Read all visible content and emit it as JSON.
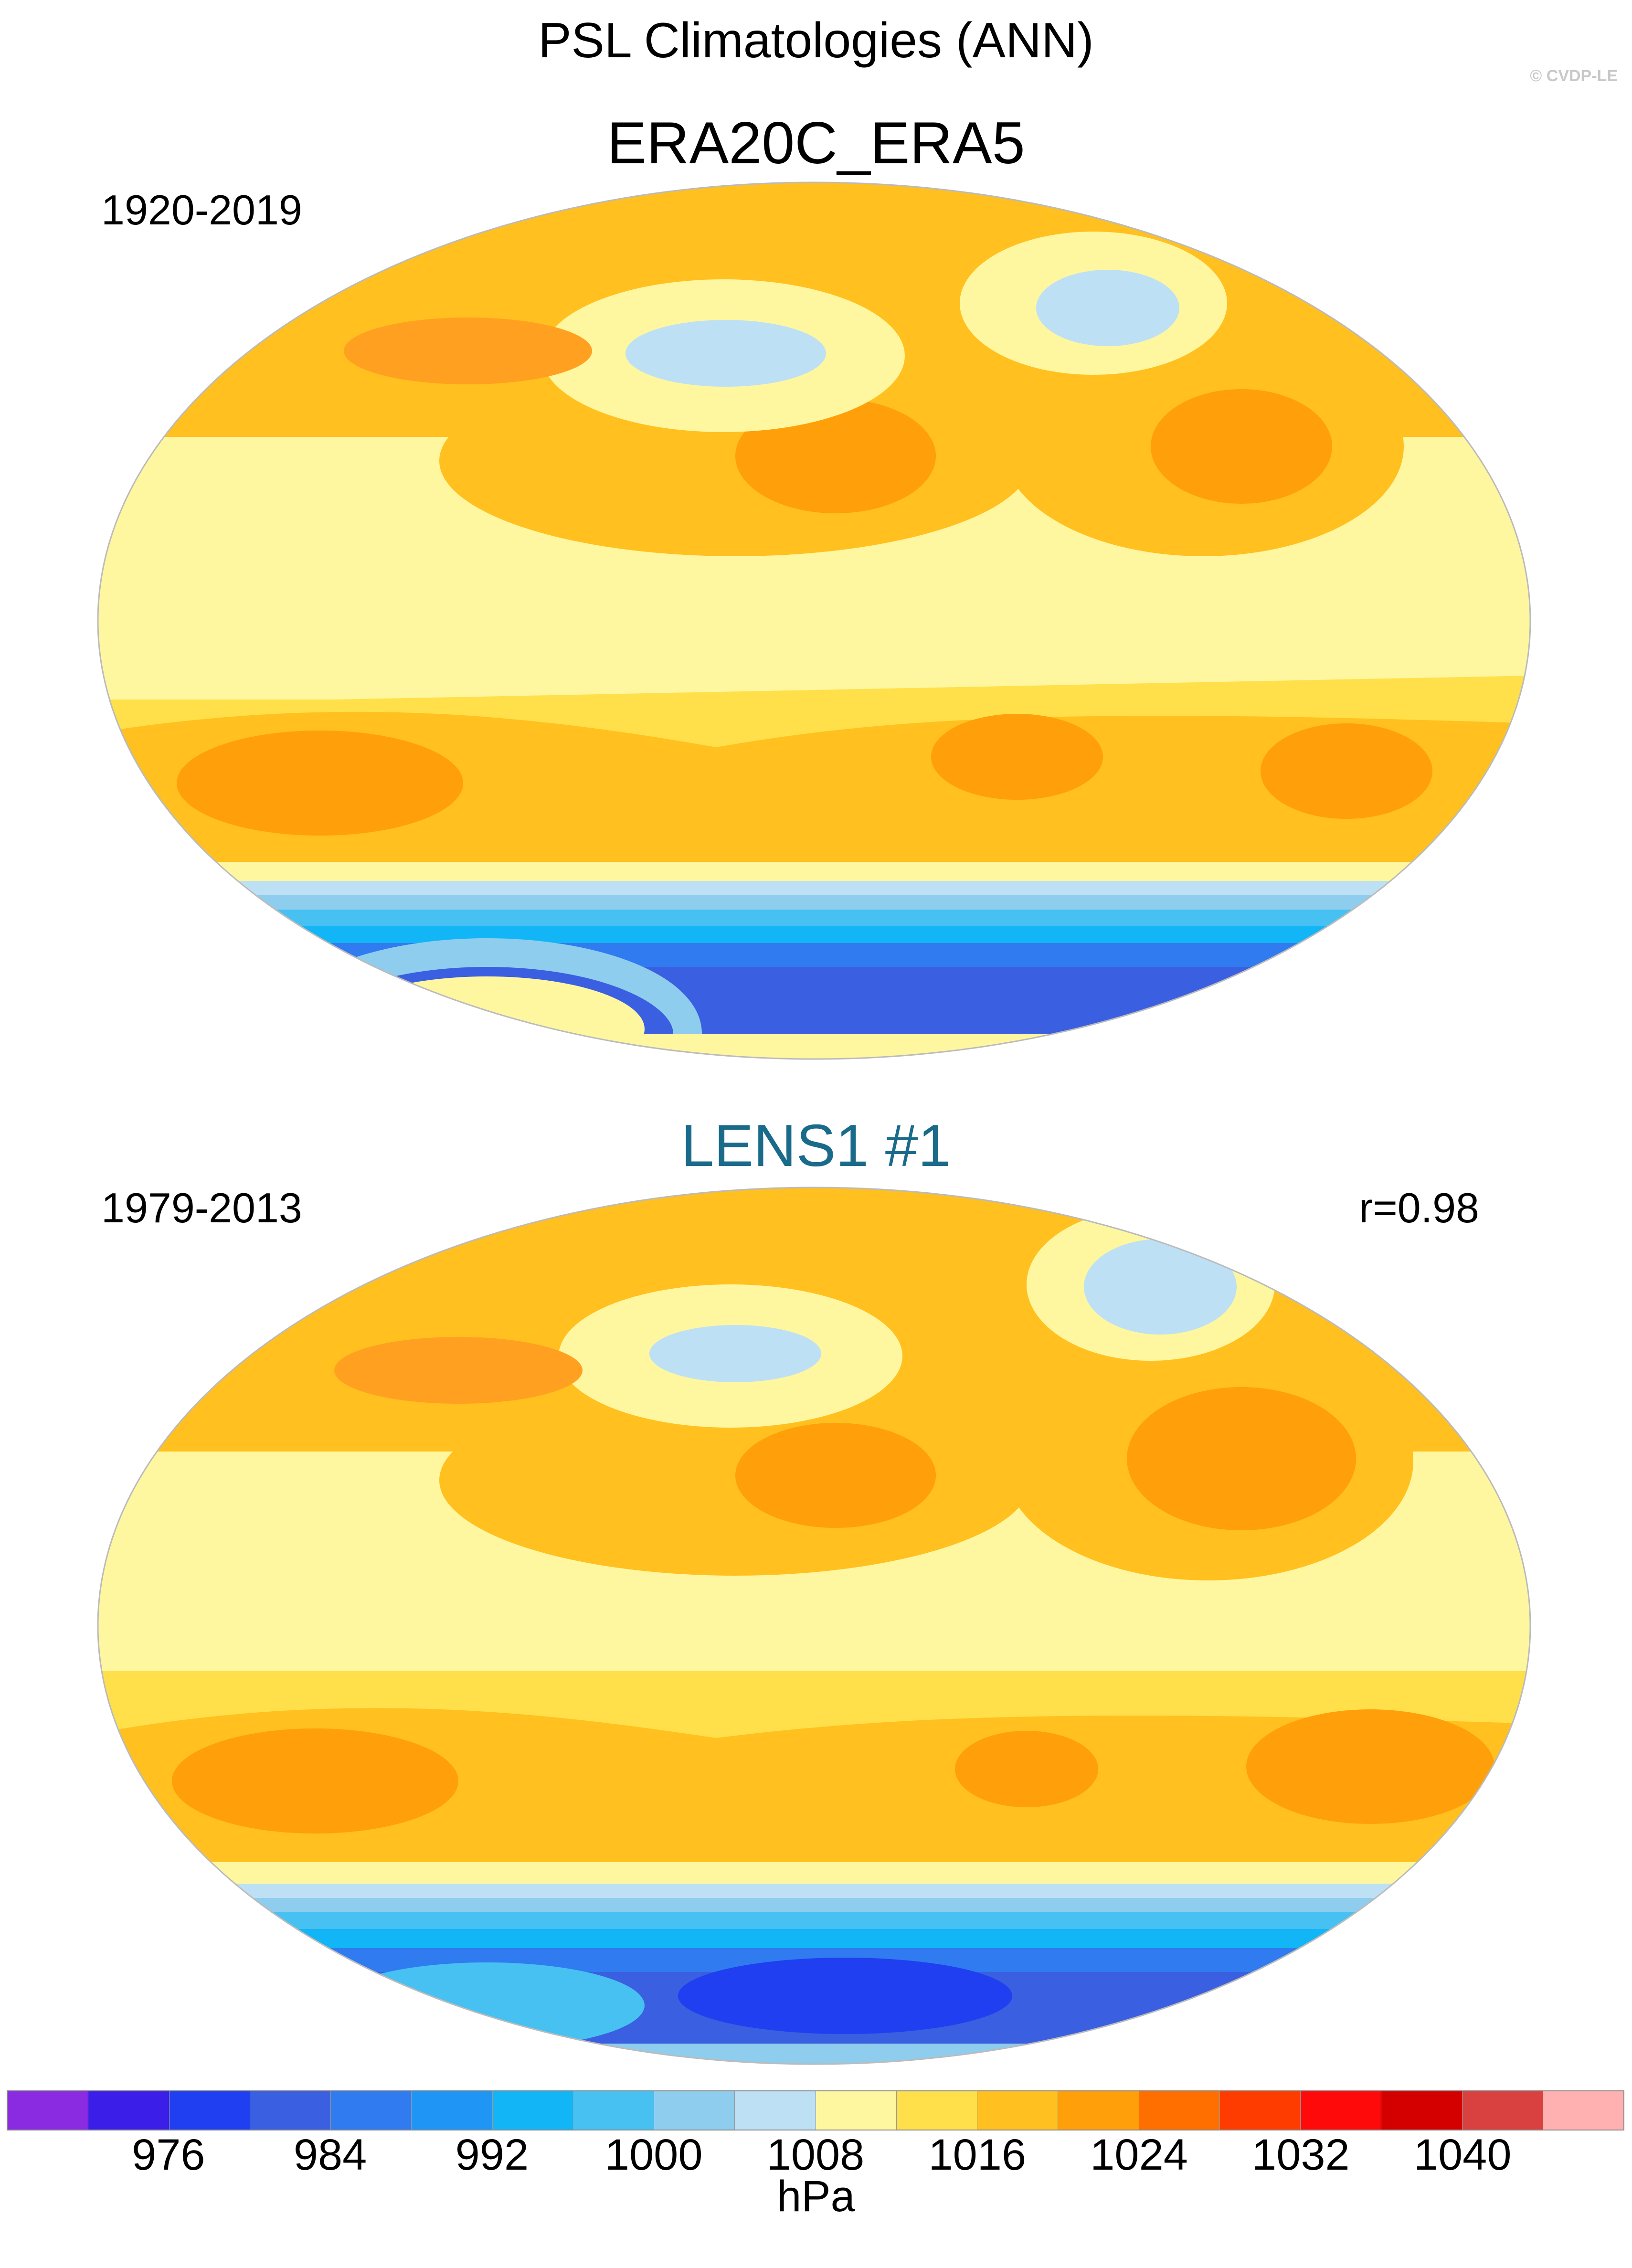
{
  "header": {
    "title": "PSL Climatologies (ANN)",
    "credit": "© CVDP-LE"
  },
  "panels": [
    {
      "title": "ERA20C_ERA5",
      "period": "1920-2019",
      "stat": "",
      "title_color": "#000000"
    },
    {
      "title": "LENS1 #1",
      "period": "1979-2013",
      "stat": "r=0.98",
      "title_color": "#1a6b8a"
    }
  ],
  "colorbar": {
    "units": "hPa",
    "labels": [
      "976",
      "984",
      "992",
      "1000",
      "1008",
      "1016",
      "1024",
      "1032",
      "1040"
    ],
    "colors": [
      "#8a2be2",
      "#3b1fe8",
      "#1f3ff0",
      "#3a5fe0",
      "#2f7bef",
      "#1f96f5",
      "#12b5f5",
      "#47c0f2",
      "#8ecdee",
      "#bde0f5",
      "#fff7a0",
      "#ffe04a",
      "#ffc020",
      "#ff9f0a",
      "#ff6f00",
      "#ff3c00",
      "#ff0a0a",
      "#d40000",
      "#d94040",
      "#ffb0b0"
    ]
  }
}
